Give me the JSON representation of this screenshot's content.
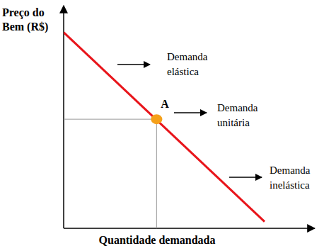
{
  "chart_data": {
    "type": "line",
    "xlabel": "Quantidade demandada",
    "ylabel": "Preço do\nBem (R$)",
    "xlim": [
      0,
      100
    ],
    "ylim": [
      0,
      100
    ],
    "xticks": [],
    "yticks": [],
    "tick_labels": false,
    "grid": false,
    "series": [
      {
        "type": "line",
        "color": "#e8151b",
        "x": [
          0,
          80
        ],
        "values": [
          88,
          3
        ]
      },
      {
        "type": "scatter",
        "marker": "circle",
        "color": "#f5a01a",
        "x": [
          37
        ],
        "values": [
          49
        ],
        "labels": [
          "A"
        ]
      }
    ],
    "annotations": [
      {
        "text": "Demanda\nelástica"
      },
      {
        "text": "Demanda\nunitária"
      },
      {
        "text": "Demanda\ninelástica"
      }
    ]
  }
}
